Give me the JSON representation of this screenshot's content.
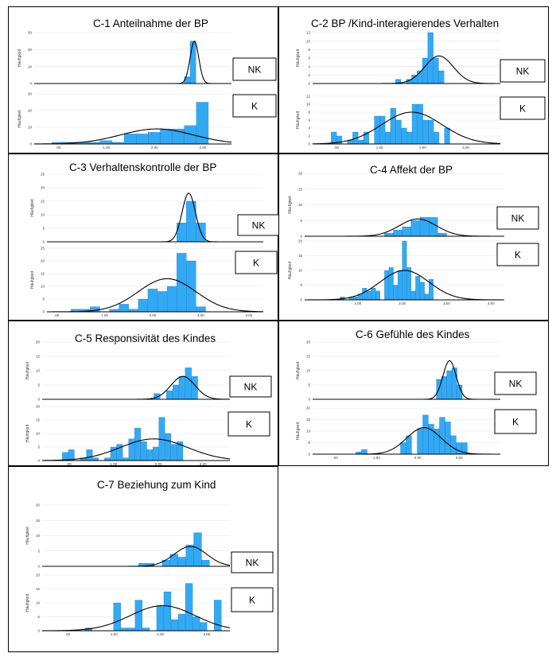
{
  "ylabel": "Häufigkeit",
  "legend": {
    "nk": "NK",
    "k": "K"
  },
  "colors": {
    "bar": "#33a9f4",
    "bar_edge": "#1c6fb8",
    "curve": "#000000"
  },
  "chart_data": [
    {
      "type": "bar",
      "title": "C-1 Anteilnahme der BP",
      "xticks": [
        ".00",
        "1.00",
        "2.00",
        "3.00"
      ],
      "xlim": [
        -0.5,
        3.6
      ],
      "nk": {
        "yticks": [
          "0",
          "10",
          "20",
          "30"
        ],
        "ylim": [
          0,
          30
        ],
        "bin_start": 2.62,
        "bin_width": 0.12,
        "values": [
          4,
          25
        ],
        "curve": {
          "mean": 2.83,
          "sd": 0.09,
          "peak": 25
        }
      },
      "k": {
        "yticks": [
          "0",
          "10",
          "20",
          "30"
        ],
        "ylim": [
          0,
          30
        ],
        "bin_start": -0.38,
        "bin_width": 0.25,
        "values": [
          0,
          1,
          1,
          1,
          1,
          2,
          1,
          6,
          6,
          7,
          9,
          9,
          11,
          25
        ],
        "curve": {
          "mean": 2.05,
          "sd": 0.75,
          "peak": 9
        }
      }
    },
    {
      "type": "bar",
      "title": "C-2 BP /Kind-interagierendes Verhalten",
      "xticks": [
        ".00",
        "1.00",
        "2.00",
        "3.00"
      ],
      "xlim": [
        -0.55,
        3.8
      ],
      "nk": {
        "yticks": [
          "0",
          "2",
          "4",
          "6",
          "8",
          "10",
          "12"
        ],
        "ylim": [
          0,
          12
        ],
        "bin_start": 1.37,
        "bin_width": 0.125,
        "values": [
          1,
          0,
          1,
          2,
          3,
          6,
          12,
          6,
          3
        ],
        "curve": {
          "mean": 2.38,
          "sd": 0.33,
          "peak": 6.5
        }
      },
      "k": {
        "yticks": [
          "0",
          "2",
          "4",
          "6",
          "8",
          "10",
          "12"
        ],
        "ylim": [
          0,
          12
        ],
        "bin_start": -0.12,
        "bin_width": 0.125,
        "values": [
          3,
          2,
          0,
          1,
          3,
          1,
          3,
          0,
          7,
          7,
          3,
          9,
          6,
          4,
          3,
          10,
          10,
          6,
          6,
          3,
          0,
          4
        ],
        "curve": {
          "mean": 1.75,
          "sd": 0.7,
          "peak": 8
        }
      }
    },
    {
      "type": "bar",
      "title": "C-3 Verhaltenskontrolle der BP",
      "xticks": [
        ".00",
        "1.00",
        "2.00",
        "3.00",
        "4.00"
      ],
      "xlim": [
        -0.2,
        4.3
      ],
      "nk": {
        "yticks": [
          "0",
          "5",
          "10",
          "15",
          "20",
          "25"
        ],
        "ylim": [
          0,
          25
        ],
        "bin_start": 2.5,
        "bin_width": 0.2,
        "values": [
          7,
          15,
          7
        ],
        "curve": {
          "mean": 2.75,
          "sd": 0.14,
          "peak": 18
        }
      },
      "k": {
        "yticks": [
          "0",
          "5",
          "10",
          "15",
          "20",
          "25"
        ],
        "ylim": [
          0,
          25
        ],
        "bin_start": 0.3,
        "bin_width": 0.2,
        "values": [
          1,
          1,
          2,
          0,
          1,
          3,
          1,
          5,
          9,
          8,
          10,
          23,
          20,
          2
        ],
        "curve": {
          "mean": 2.3,
          "sd": 0.6,
          "peak": 13
        }
      }
    },
    {
      "type": "bar",
      "title": "C-4 Affekt der BP",
      "xticks": [
        "",
        "1.00",
        "2.00",
        "3.00",
        "4.00"
      ],
      "xlim": [
        -0.2,
        4.3
      ],
      "nk": {
        "yticks": [
          "0",
          "5",
          "10",
          "15",
          "20"
        ],
        "ylim": [
          0,
          20
        ],
        "bin_start": 1.6,
        "bin_width": 0.2,
        "values": [
          1,
          2,
          3,
          5,
          6,
          6,
          1
        ],
        "curve": {
          "mean": 2.35,
          "sd": 0.42,
          "peak": 5.5
        }
      },
      "k": {
        "yticks": [
          "0",
          "5",
          "10",
          "15",
          "20"
        ],
        "ylim": [
          0,
          20
        ],
        "bin_start": 0.6,
        "bin_width": 0.1,
        "values": [
          1,
          0,
          1,
          1,
          2,
          4,
          3,
          4,
          3,
          0,
          10,
          11,
          5,
          10,
          20,
          11,
          3,
          8,
          6,
          2,
          7
        ],
        "curve": {
          "mean": 2.05,
          "sd": 0.55,
          "peak": 10
        }
      }
    },
    {
      "type": "bar",
      "title": "C-5 Responsivität des Kindes",
      "xticks": [
        ".00",
        "1.00",
        "2.00",
        "3.00"
      ],
      "xlim": [
        -0.6,
        3.6
      ],
      "nk": {
        "yticks": [
          "0",
          "5",
          "10",
          "15",
          "20"
        ],
        "ylim": [
          0,
          20
        ],
        "bin_start": 1.9,
        "bin_width": 0.14,
        "values": [
          2,
          0,
          3,
          5,
          8,
          11,
          8
        ],
        "curve": {
          "mean": 2.55,
          "sd": 0.27,
          "peak": 8
        }
      },
      "k": {
        "yticks": [
          "0",
          "5",
          "10",
          "15",
          "20"
        ],
        "ylim": [
          0,
          20
        ],
        "bin_start": -0.15,
        "bin_width": 0.135,
        "values": [
          3,
          4,
          0,
          1,
          4,
          1,
          0,
          1,
          5,
          6,
          1,
          8,
          12,
          7,
          4,
          5,
          16,
          10,
          6,
          7
        ],
        "curve": {
          "mean": 1.9,
          "sd": 0.75,
          "peak": 8
        }
      }
    },
    {
      "type": "bar",
      "title": "C-6 Gefühle des Kindes",
      "xticks": [
        ".00",
        "1.00",
        "2.00",
        "3.00"
      ],
      "xlim": [
        -0.55,
        4.0
      ],
      "nk": {
        "yticks": [
          "0",
          "5",
          "10",
          "15",
          "20"
        ],
        "ylim": [
          0,
          20
        ],
        "bin_start": 2.45,
        "bin_width": 0.125,
        "values": [
          7,
          8,
          10,
          11,
          5
        ],
        "curve": {
          "mean": 2.77,
          "sd": 0.16,
          "peak": 13.5
        }
      },
      "k": {
        "yticks": [
          "0",
          "5",
          "10",
          "15",
          "20"
        ],
        "ylim": [
          0,
          20
        ],
        "bin_start": 0.5,
        "bin_width": 0.135,
        "values": [
          1,
          2,
          0,
          0,
          0,
          0,
          0,
          0,
          5,
          8,
          0,
          11,
          17,
          13,
          11,
          16,
          14,
          8,
          5,
          5
        ],
        "curve": {
          "mean": 2.15,
          "sd": 0.42,
          "peak": 11.5
        }
      }
    },
    {
      "type": "bar",
      "title": "C-7 Beziehung zum Kind",
      "xticks": [
        ".00",
        "1.00",
        "2.00",
        "3.00"
      ],
      "xlim": [
        -0.55,
        3.5
      ],
      "nk": {
        "yticks": [
          "0",
          "5",
          "10",
          "15",
          "20"
        ],
        "ylim": [
          0,
          20
        ],
        "bin_start": 1.53,
        "bin_width": 0.17,
        "values": [
          1,
          1,
          0,
          2,
          4,
          3,
          7,
          11,
          2
        ],
        "curve": {
          "mean": 2.65,
          "sd": 0.35,
          "peak": 6.5
        }
      },
      "k": {
        "yticks": [
          "0",
          "5",
          "10",
          "15",
          "20"
        ],
        "ylim": [
          0,
          20
        ],
        "bin_start": 0.37,
        "bin_width": 0.155,
        "values": [
          1,
          0,
          0,
          0,
          10,
          1,
          1,
          11,
          1,
          0,
          9,
          14,
          4,
          6,
          17,
          5,
          3,
          0,
          11
        ],
        "curve": {
          "mean": 2.05,
          "sd": 0.7,
          "peak": 9
        }
      }
    }
  ]
}
